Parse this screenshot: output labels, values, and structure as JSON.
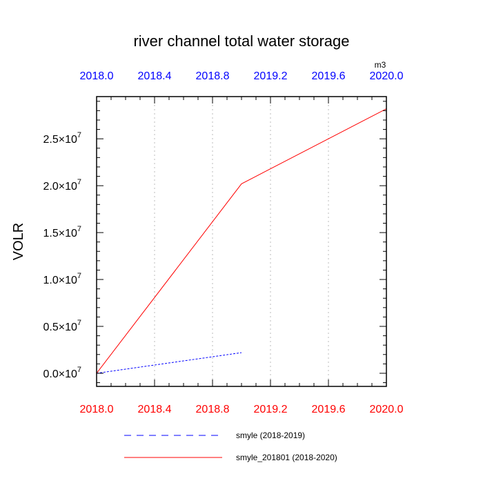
{
  "chart_data": {
    "type": "line",
    "title": "river channel total water storage",
    "ylabel": "VOLR",
    "units": "m3",
    "xlim": [
      2018.0,
      2020.0
    ],
    "ylim": [
      -1400000,
      29500000
    ],
    "x_ticks": [
      "2018.0",
      "2018.4",
      "2018.8",
      "2019.2",
      "2019.6",
      "2020.0"
    ],
    "y_ticks": [
      {
        "value": 0,
        "mantissa": "0.0",
        "exponent": "7"
      },
      {
        "value": 5000000,
        "mantissa": "0.5",
        "exponent": "7"
      },
      {
        "value": 10000000,
        "mantissa": "1.0",
        "exponent": "7"
      },
      {
        "value": 15000000,
        "mantissa": "1.5",
        "exponent": "7"
      },
      {
        "value": 20000000,
        "mantissa": "2.0",
        "exponent": "7"
      },
      {
        "value": 25000000,
        "mantissa": "2.5",
        "exponent": "7"
      }
    ],
    "times_sign": "×10",
    "grid": "vertical dotted",
    "top_axis_color": "#0000ff",
    "bottom_axis_color": "#ff0000",
    "series": [
      {
        "name": "smyle (2018-2019)",
        "color": "#0000ff",
        "dash": "dashed",
        "x": [
          2018.0,
          2019.0
        ],
        "y": [
          0,
          2200000
        ]
      },
      {
        "name": "smyle_201801 (2018-2020)",
        "color": "#ff0000",
        "dash": "solid",
        "x": [
          2018.0,
          2019.0,
          2020.0
        ],
        "y": [
          0,
          20200000,
          28200000
        ]
      }
    ]
  }
}
